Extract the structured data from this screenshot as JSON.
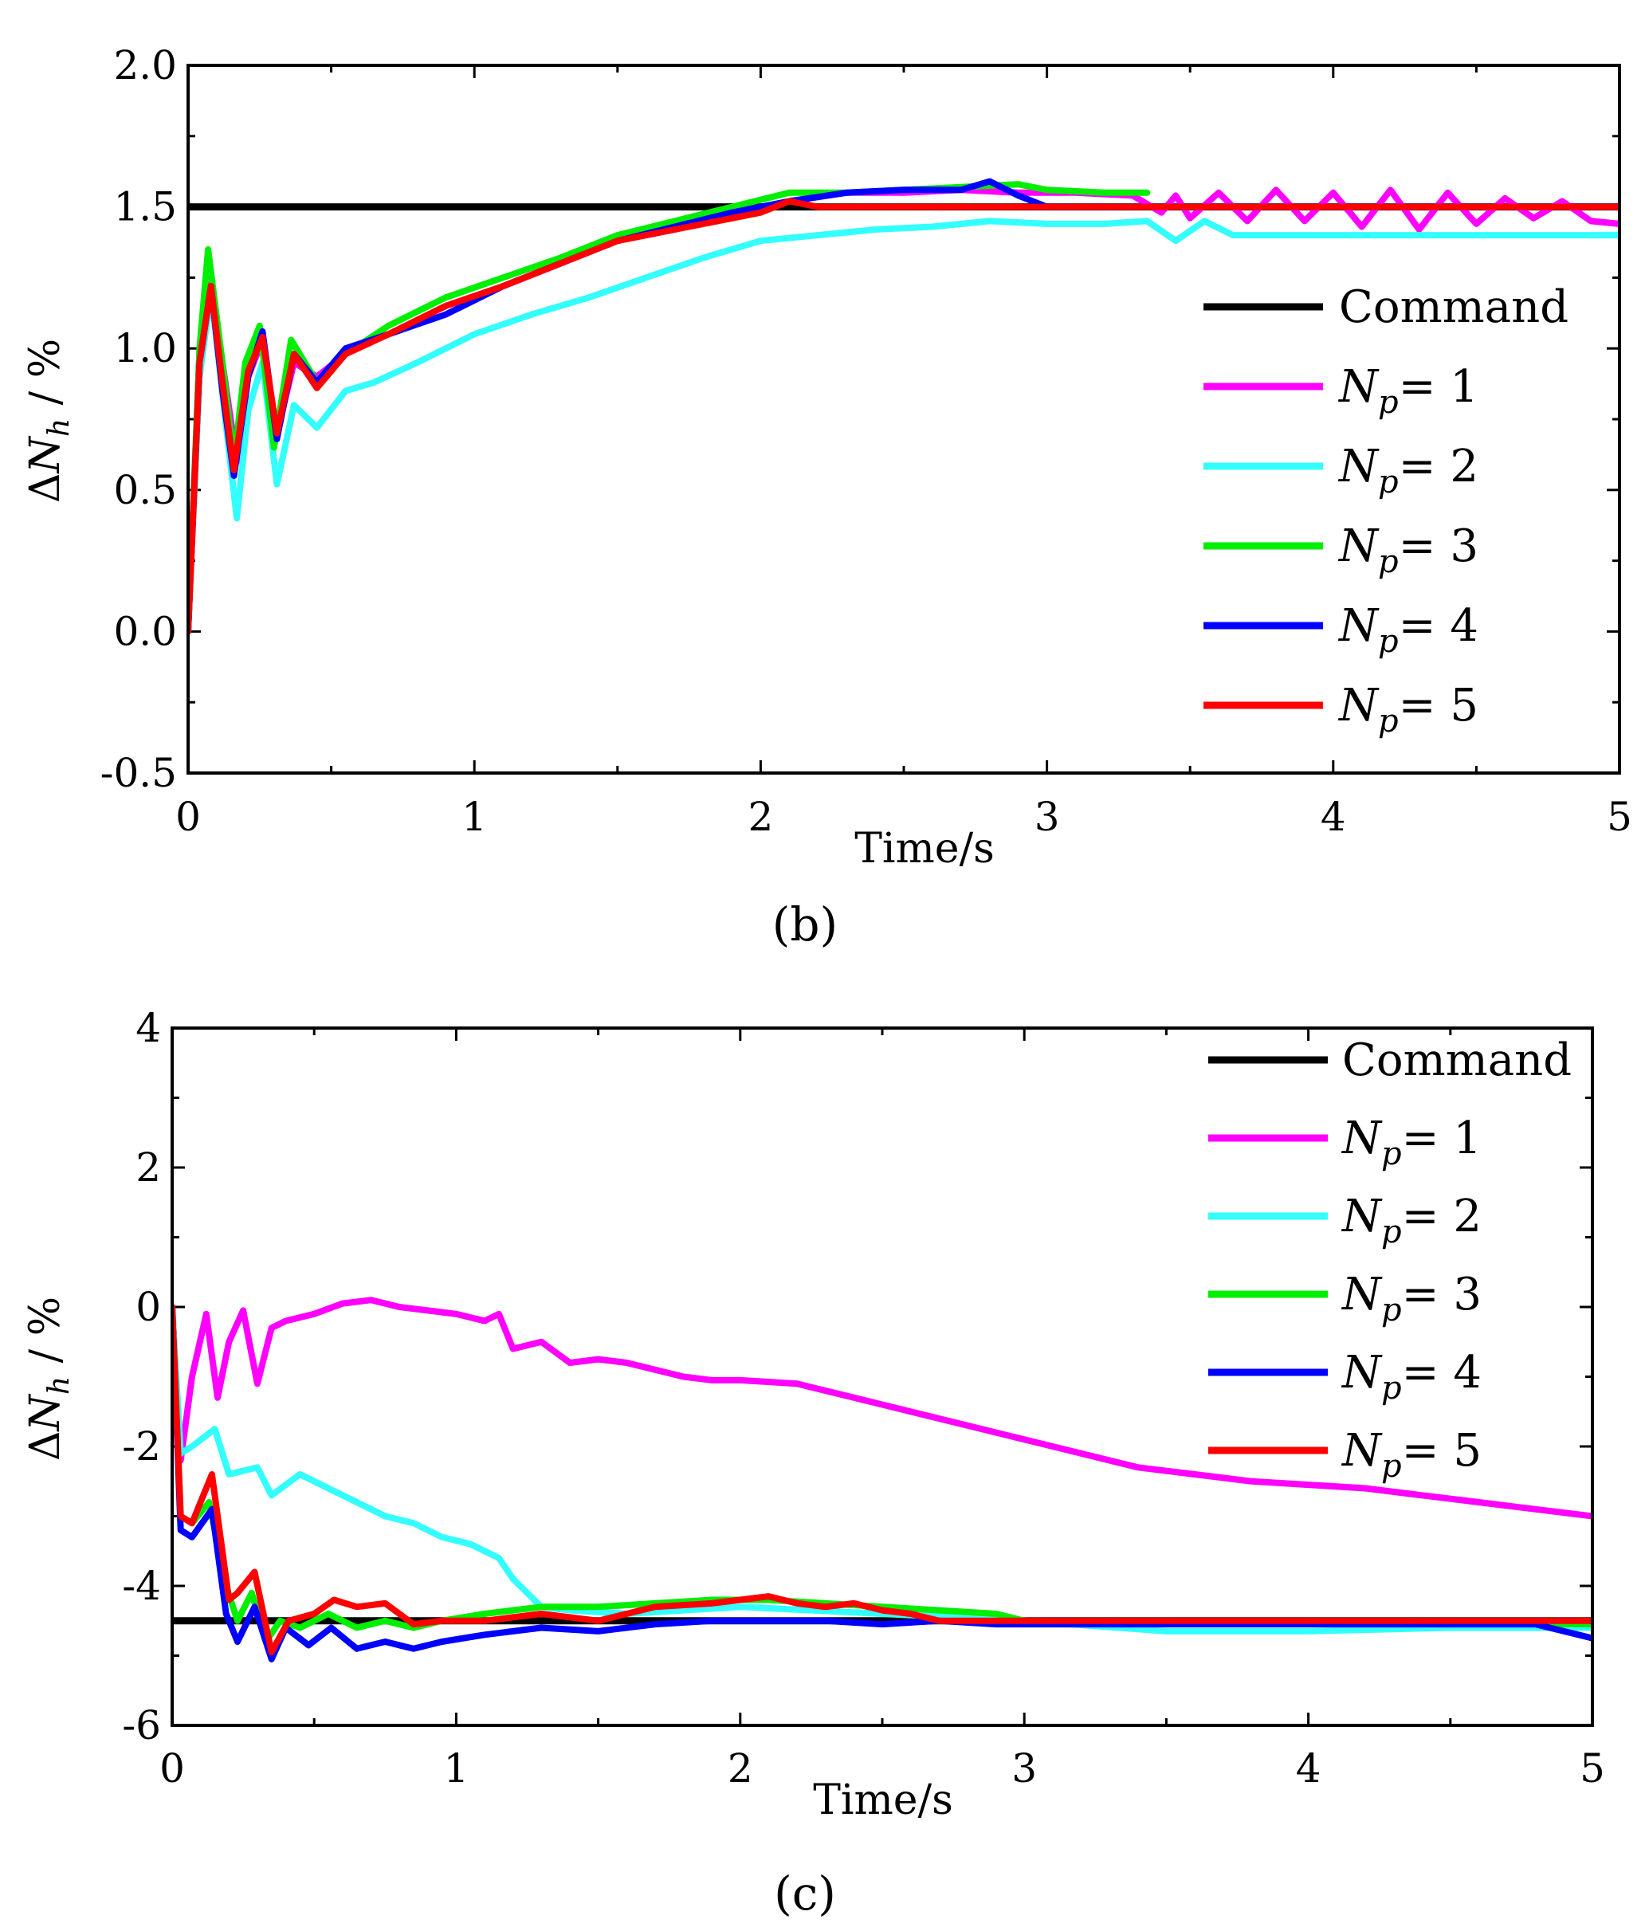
{
  "figure": {
    "panel_labels": [
      "b",
      "c"
    ]
  },
  "chart_data": [
    {
      "panel": "b",
      "type": "line",
      "title": "",
      "xlabel": "Time/s",
      "ylabel": {
        "prefix": "ΔN",
        "subscript": "h",
        "suffix": " / %"
      },
      "xlim": [
        0,
        5
      ],
      "ylim": [
        -0.5,
        2.0
      ],
      "xticks": [
        "0",
        "1",
        "2",
        "3",
        "4",
        "5"
      ],
      "yticks": [
        "-0.5",
        "0.0",
        "0.5",
        "1.0",
        "1.5",
        "2.0"
      ],
      "legend_position": "center-right",
      "series": [
        {
          "name": "Command",
          "label": {
            "main": "Command",
            "sub": "",
            "tail": ""
          },
          "color": "#000000",
          "x": [
            0,
            5
          ],
          "y": [
            1.5,
            1.5
          ]
        },
        {
          "name": "Np=1",
          "label": {
            "main": "N",
            "sub": "p",
            "tail": "= 1"
          },
          "color": "#ff00ff",
          "x": [
            0,
            0.04,
            0.08,
            0.13,
            0.17,
            0.21,
            0.26,
            0.31,
            0.37,
            0.45,
            0.55,
            0.7,
            0.9,
            1.1,
            1.3,
            1.5,
            1.7,
            1.9,
            2.1,
            2.3,
            2.5,
            2.7,
            2.9,
            3.1,
            3.3,
            3.4,
            3.45,
            3.5,
            3.6,
            3.7,
            3.8,
            3.9,
            4.0,
            4.1,
            4.2,
            4.3,
            4.4,
            4.5,
            4.6,
            4.7,
            4.8,
            4.9,
            5.0
          ],
          "y": [
            0,
            0.95,
            1.23,
            0.88,
            0.6,
            0.9,
            1.03,
            0.7,
            0.95,
            0.9,
            0.98,
            1.05,
            1.15,
            1.22,
            1.3,
            1.38,
            1.42,
            1.48,
            1.52,
            1.55,
            1.55,
            1.56,
            1.55,
            1.55,
            1.54,
            1.48,
            1.54,
            1.46,
            1.55,
            1.45,
            1.56,
            1.45,
            1.55,
            1.43,
            1.56,
            1.42,
            1.55,
            1.44,
            1.53,
            1.46,
            1.52,
            1.45,
            1.44
          ]
        },
        {
          "name": "Np=2",
          "label": {
            "main": "N",
            "sub": "p",
            "tail": "= 2"
          },
          "color": "#33ffff",
          "x": [
            0,
            0.04,
            0.08,
            0.13,
            0.17,
            0.21,
            0.26,
            0.31,
            0.37,
            0.45,
            0.55,
            0.65,
            0.8,
            1.0,
            1.2,
            1.4,
            1.6,
            1.8,
            2.0,
            2.2,
            2.4,
            2.6,
            2.8,
            3.0,
            3.2,
            3.35,
            3.45,
            3.55,
            3.65,
            3.7,
            4.0,
            4.5,
            5.0
          ],
          "y": [
            0,
            0.9,
            1.2,
            0.75,
            0.4,
            0.78,
            0.95,
            0.52,
            0.8,
            0.72,
            0.85,
            0.88,
            0.95,
            1.05,
            1.12,
            1.18,
            1.25,
            1.32,
            1.38,
            1.4,
            1.42,
            1.43,
            1.45,
            1.44,
            1.44,
            1.45,
            1.38,
            1.45,
            1.4,
            1.4,
            1.4,
            1.4,
            1.4
          ]
        },
        {
          "name": "Np=3",
          "label": {
            "main": "N",
            "sub": "p",
            "tail": "= 3"
          },
          "color": "#00ee00",
          "x": [
            0,
            0.04,
            0.07,
            0.12,
            0.16,
            0.2,
            0.25,
            0.3,
            0.36,
            0.45,
            0.55,
            0.7,
            0.9,
            1.1,
            1.3,
            1.5,
            1.7,
            1.9,
            2.1,
            2.3,
            2.5,
            2.7,
            2.9,
            3.0,
            3.2,
            3.35
          ],
          "y": [
            0,
            1.0,
            1.35,
            0.95,
            0.6,
            0.95,
            1.08,
            0.65,
            1.03,
            0.88,
            0.98,
            1.08,
            1.18,
            1.25,
            1.32,
            1.4,
            1.45,
            1.5,
            1.55,
            1.55,
            1.56,
            1.57,
            1.58,
            1.56,
            1.55,
            1.55
          ]
        },
        {
          "name": "Np=4",
          "label": {
            "main": "N",
            "sub": "p",
            "tail": "= 4"
          },
          "color": "#0000ff",
          "x": [
            0,
            0.04,
            0.08,
            0.12,
            0.16,
            0.21,
            0.26,
            0.31,
            0.37,
            0.45,
            0.55,
            0.7,
            0.9,
            1.1,
            1.3,
            1.5,
            1.7,
            1.9,
            2.1,
            2.3,
            2.5,
            2.7,
            2.8,
            2.9,
            2.95,
            3.0,
            5.0
          ],
          "y": [
            0,
            0.95,
            1.22,
            0.85,
            0.55,
            0.9,
            1.06,
            0.68,
            0.98,
            0.88,
            1.0,
            1.05,
            1.12,
            1.22,
            1.3,
            1.38,
            1.43,
            1.48,
            1.52,
            1.55,
            1.56,
            1.56,
            1.59,
            1.54,
            1.52,
            1.5,
            1.5
          ]
        },
        {
          "name": "Np=5",
          "label": {
            "main": "N",
            "sub": "p",
            "tail": "= 5"
          },
          "color": "#ff0000",
          "x": [
            0,
            0.04,
            0.08,
            0.12,
            0.16,
            0.21,
            0.26,
            0.31,
            0.37,
            0.45,
            0.55,
            0.7,
            0.9,
            1.1,
            1.3,
            1.5,
            1.7,
            1.9,
            2.0,
            2.1,
            2.2,
            2.4,
            2.6,
            5.0
          ],
          "y": [
            0,
            0.95,
            1.22,
            0.88,
            0.57,
            0.92,
            1.04,
            0.7,
            0.98,
            0.86,
            0.98,
            1.05,
            1.15,
            1.22,
            1.3,
            1.38,
            1.42,
            1.46,
            1.48,
            1.52,
            1.5,
            1.5,
            1.5,
            1.5
          ]
        }
      ]
    },
    {
      "panel": "c",
      "type": "line",
      "title": "",
      "xlabel": "Time/s",
      "ylabel": {
        "prefix": "ΔN",
        "subscript": "h",
        "suffix": " / %"
      },
      "xlim": [
        0,
        5
      ],
      "ylim": [
        -6,
        4
      ],
      "xticks": [
        "0",
        "1",
        "2",
        "3",
        "4",
        "5"
      ],
      "yticks": [
        "-6",
        "-4",
        "-2",
        "0",
        "2",
        "4"
      ],
      "legend_position": "top-right",
      "series": [
        {
          "name": "Command",
          "label": {
            "main": "Command",
            "sub": "",
            "tail": ""
          },
          "color": "#000000",
          "x": [
            0,
            5
          ],
          "y": [
            -4.5,
            -4.5
          ]
        },
        {
          "name": "Np=1",
          "label": {
            "main": "N",
            "sub": "p",
            "tail": "= 1"
          },
          "color": "#ff00ff",
          "x": [
            0,
            0.03,
            0.07,
            0.12,
            0.16,
            0.2,
            0.25,
            0.3,
            0.35,
            0.4,
            0.5,
            0.6,
            0.7,
            0.8,
            0.9,
            1.0,
            1.1,
            1.15,
            1.2,
            1.3,
            1.4,
            1.5,
            1.6,
            1.7,
            1.8,
            1.9,
            2.0,
            2.2,
            2.4,
            2.6,
            2.8,
            3.0,
            3.2,
            3.4,
            3.6,
            3.8,
            4.0,
            4.2,
            4.4,
            4.6,
            4.8,
            5.0
          ],
          "y": [
            0,
            -2.2,
            -1.0,
            -0.1,
            -1.3,
            -0.5,
            -0.05,
            -1.1,
            -0.3,
            -0.2,
            -0.1,
            0.05,
            0.1,
            0.0,
            -0.05,
            -0.1,
            -0.2,
            -0.1,
            -0.6,
            -0.5,
            -0.8,
            -0.75,
            -0.8,
            -0.9,
            -1.0,
            -1.05,
            -1.05,
            -1.1,
            -1.3,
            -1.5,
            -1.7,
            -1.9,
            -2.1,
            -2.3,
            -2.4,
            -2.5,
            -2.55,
            -2.6,
            -2.7,
            -2.8,
            -2.9,
            -3.0
          ]
        },
        {
          "name": "Np=2",
          "label": {
            "main": "N",
            "sub": "p",
            "tail": "= 2"
          },
          "color": "#33ffff",
          "x": [
            0,
            0.03,
            0.07,
            0.15,
            0.2,
            0.3,
            0.35,
            0.45,
            0.55,
            0.65,
            0.75,
            0.85,
            0.95,
            1.05,
            1.15,
            1.2,
            1.25,
            1.3,
            1.4,
            1.6,
            1.8,
            2.0,
            2.5,
            3.0,
            3.5,
            4.0,
            4.5,
            5.0
          ],
          "y": [
            0,
            -2.1,
            -2.0,
            -1.75,
            -2.4,
            -2.3,
            -2.7,
            -2.4,
            -2.6,
            -2.8,
            -3.0,
            -3.1,
            -3.3,
            -3.4,
            -3.6,
            -3.9,
            -4.1,
            -4.3,
            -4.35,
            -4.4,
            -4.35,
            -4.3,
            -4.4,
            -4.5,
            -4.65,
            -4.65,
            -4.6,
            -4.6
          ]
        },
        {
          "name": "Np=3",
          "label": {
            "main": "N",
            "sub": "p",
            "tail": "= 3"
          },
          "color": "#00ee00",
          "x": [
            0,
            0.03,
            0.07,
            0.13,
            0.19,
            0.23,
            0.28,
            0.33,
            0.38,
            0.45,
            0.55,
            0.65,
            0.75,
            0.85,
            0.95,
            1.1,
            1.3,
            1.5,
            1.7,
            1.9,
            2.1,
            2.3,
            2.5,
            2.7,
            2.9,
            3.0,
            5.0
          ],
          "y": [
            0,
            -3.0,
            -3.1,
            -2.8,
            -4.0,
            -4.5,
            -4.1,
            -4.8,
            -4.5,
            -4.6,
            -4.4,
            -4.6,
            -4.5,
            -4.6,
            -4.5,
            -4.4,
            -4.3,
            -4.3,
            -4.25,
            -4.2,
            -4.2,
            -4.25,
            -4.3,
            -4.35,
            -4.4,
            -4.5,
            -4.55
          ]
        },
        {
          "name": "Np=4",
          "label": {
            "main": "N",
            "sub": "p",
            "tail": "= 4"
          },
          "color": "#0000ff",
          "x": [
            0,
            0.03,
            0.07,
            0.14,
            0.19,
            0.23,
            0.29,
            0.35,
            0.4,
            0.48,
            0.56,
            0.65,
            0.75,
            0.85,
            0.95,
            1.1,
            1.3,
            1.5,
            1.7,
            1.9,
            2.1,
            2.3,
            2.5,
            2.7,
            2.9,
            3.0,
            4.8,
            5.0
          ],
          "y": [
            0,
            -3.2,
            -3.3,
            -2.9,
            -4.4,
            -4.8,
            -4.3,
            -5.05,
            -4.6,
            -4.85,
            -4.6,
            -4.9,
            -4.8,
            -4.9,
            -4.8,
            -4.7,
            -4.6,
            -4.65,
            -4.55,
            -4.5,
            -4.5,
            -4.5,
            -4.55,
            -4.5,
            -4.55,
            -4.55,
            -4.55,
            -4.75
          ]
        },
        {
          "name": "Np=5",
          "label": {
            "main": "N",
            "sub": "p",
            "tail": "= 5"
          },
          "color": "#ff0000",
          "x": [
            0,
            0.03,
            0.07,
            0.14,
            0.2,
            0.23,
            0.29,
            0.35,
            0.41,
            0.5,
            0.57,
            0.65,
            0.75,
            0.85,
            0.95,
            1.1,
            1.3,
            1.5,
            1.7,
            1.9,
            2.1,
            2.2,
            2.3,
            2.4,
            2.5,
            2.6,
            2.7,
            2.9,
            3.0,
            5.0
          ],
          "y": [
            0,
            -3.0,
            -3.1,
            -2.4,
            -4.2,
            -4.1,
            -3.8,
            -4.95,
            -4.5,
            -4.4,
            -4.2,
            -4.3,
            -4.25,
            -4.55,
            -4.5,
            -4.5,
            -4.4,
            -4.5,
            -4.3,
            -4.25,
            -4.15,
            -4.25,
            -4.3,
            -4.25,
            -4.35,
            -4.4,
            -4.5,
            -4.5,
            -4.5,
            -4.5
          ]
        }
      ]
    }
  ]
}
